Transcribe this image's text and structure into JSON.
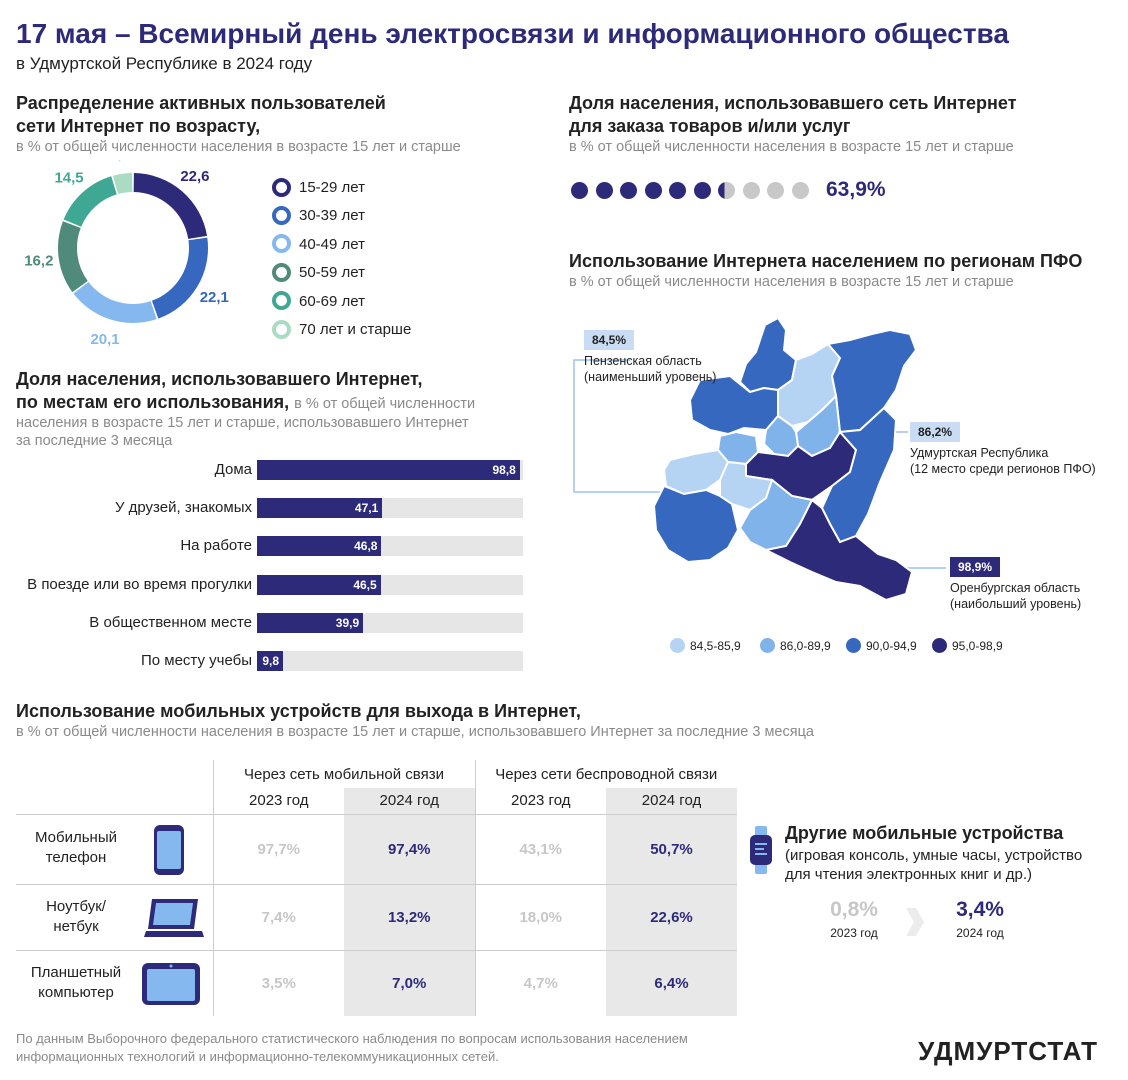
{
  "header": {
    "title": "17 мая – Всемирный день электросвязи и информационного общества",
    "subtitle": "в Удмуртской Республике в 2024 году"
  },
  "age": {
    "title_1": "Распределение активных пользователей",
    "title_2": "сети Интернет по возрасту,",
    "subtitle": "в % от общей численности населения в возрасте 15 лет и старше"
  },
  "places": {
    "title_1": "Доля населения, использовавшего Интернет,",
    "title_2": "по местам его использования,",
    "subtitle_inline": "в % от общей численности",
    "subtitle_2": "населения в возрасте 15 лет и старше, использовавшего Интернет",
    "subtitle_3": "за последние 3 месяца"
  },
  "orders": {
    "title_1": "Доля населения, использовавшего сеть Интернет",
    "title_2": "для заказа товаров и/или услуг",
    "subtitle": "в % от общей численности населения в возрасте 15 лет и старше",
    "value_text": "63,9%"
  },
  "regions": {
    "title": "Использование Интернета населением по регионам ПФО",
    "subtitle": "в % от общей численности населения в возрасте 15 лет и старше",
    "min_value": "84,5%",
    "min_name": "Пензенская область",
    "min_note": "(наименьший уровень)",
    "ud_value": "86,2%",
    "ud_name": "Удмуртская Республика",
    "ud_note": "(12 место среди регионов ПФО)",
    "max_value": "98,9%",
    "max_name": "Оренбургская область",
    "max_note": "(наибольший уровень)",
    "legend": [
      "84,5-85,9",
      "86,0-89,9",
      "90,0-94,9",
      "95,0-98,9"
    ],
    "legend_colors": [
      "#b5d3f3",
      "#7fb3ea",
      "#3568be",
      "#2e2a7a"
    ]
  },
  "mobile": {
    "title": "Использование мобильных устройств для выхода в Интернет,",
    "subtitle": "в % от общей численности населения в возрасте 15 лет и старше, использовавшего Интернет за последние 3 месяца",
    "col_group_1": "Через сеть мобильной связи",
    "col_group_2": "Через сети беспроводной связи",
    "year_2023": "2023 год",
    "year_2024": "2024 год",
    "rows": [
      {
        "label_1": "Мобильный",
        "label_2": "телефон",
        "icon": "phone-icon",
        "v1": "97,7%",
        "v2": "97,4%",
        "v3": "43,1%",
        "v4": "50,7%"
      },
      {
        "label_1": "Ноутбук/",
        "label_2": "нетбук",
        "icon": "laptop-icon",
        "v1": "7,4%",
        "v2": "13,2%",
        "v3": "18,0%",
        "v4": "22,6%"
      },
      {
        "label_1": "Планшетный",
        "label_2": "компьютер",
        "icon": "tablet-icon",
        "v1": "3,5%",
        "v2": "7,0%",
        "v3": "4,7%",
        "v4": "6,4%"
      }
    ]
  },
  "other_devices": {
    "title": "Другие мобильные устройства",
    "desc_1": "(игровая консоль, умные часы, устройство",
    "desc_2": "для чтения электронных книг и др.)",
    "v2023": "0,8%",
    "y2023": "2023 год",
    "v2024": "3,4%",
    "y2024": "2024 год"
  },
  "footer": {
    "line_1": "По данным Выборочного федерального статистического наблюдения по вопросам использования населением",
    "line_2": "информационных технологий и информационно-телекоммуникационных сетей.",
    "logo": "УДМУРТСТАТ"
  },
  "chart_data": [
    {
      "type": "pie",
      "title": "Распределение активных пользователей сети Интернет по возрасту",
      "categories": [
        "15-29 лет",
        "30-39 лет",
        "40-49 лет",
        "50-59 лет",
        "60-69 лет",
        "70 лет и старше"
      ],
      "values": [
        22.6,
        22.1,
        20.1,
        16.2,
        14.5,
        4.5
      ],
      "labels": [
        "22,6",
        "22,1",
        "20,1",
        "16,2",
        "14,5",
        "4,5"
      ],
      "colors": [
        "#2e2a7a",
        "#3568be",
        "#84b8ef",
        "#4f8a7a",
        "#3fa894",
        "#a9dcc3"
      ]
    },
    {
      "type": "bar",
      "title": "Доля населения, использовавшего Интернет, по местам его использования",
      "categories": [
        "Дома",
        "У друзей, знакомых",
        "На работе",
        "В поезде или во время прогулки",
        "В общественном месте",
        "По месту учебы"
      ],
      "values": [
        98.8,
        47.1,
        46.8,
        46.5,
        39.9,
        9.8
      ],
      "labels": [
        "98,8",
        "47,1",
        "46,8",
        "46,5",
        "39,9",
        "9,8"
      ],
      "xlim": [
        0,
        100
      ]
    },
    {
      "type": "bar",
      "title": "Доля населения, использовавшего сеть Интернет для заказа товаров и/или услуг",
      "values": [
        63.9
      ],
      "scale": 10
    }
  ]
}
